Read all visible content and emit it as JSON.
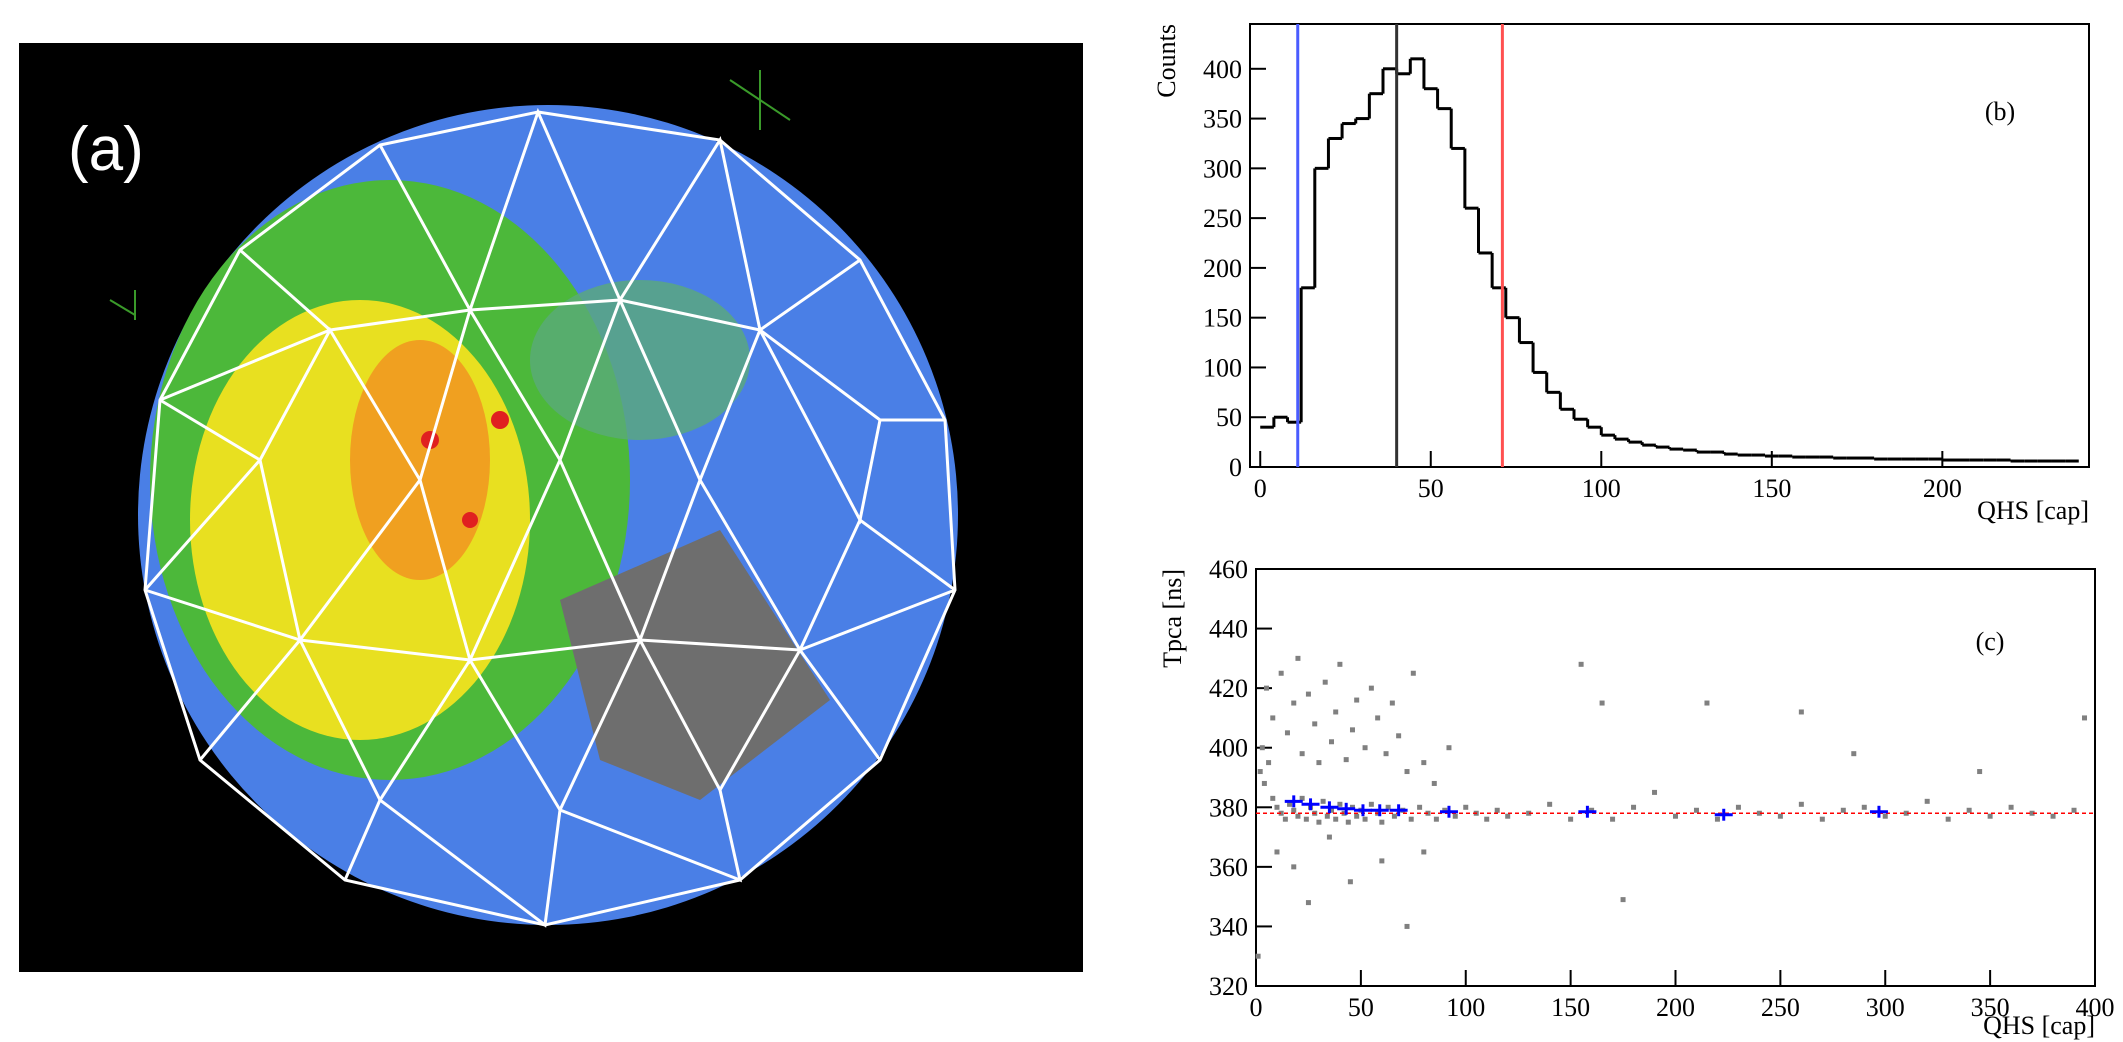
{
  "image": {
    "label": "(a)"
  },
  "chart_data": [
    {
      "type": "histogram",
      "annotation": "(b)",
      "xlabel": "QHS [cap]",
      "ylabel": "Counts",
      "color": "#000000",
      "bins": [
        0,
        4,
        8,
        12,
        16,
        20,
        24,
        28,
        32,
        36,
        40,
        44,
        48,
        52,
        56,
        60,
        64,
        68,
        72,
        76,
        80,
        84,
        88,
        92,
        96,
        100,
        104,
        108,
        112,
        116,
        120,
        124,
        128,
        132,
        136,
        140,
        144,
        148,
        152,
        156,
        160,
        164,
        168,
        172,
        176,
        180,
        184,
        188,
        192,
        196,
        200,
        204,
        208,
        212,
        216,
        220,
        224,
        228,
        232,
        236,
        240
      ],
      "counts": [
        40,
        50,
        45,
        180,
        300,
        330,
        345,
        350,
        375,
        400,
        395,
        410,
        380,
        360,
        320,
        260,
        215,
        180,
        150,
        125,
        95,
        75,
        58,
        48,
        40,
        32,
        28,
        25,
        22,
        20,
        18,
        17,
        15,
        15,
        13,
        12,
        12,
        11,
        11,
        10,
        10,
        10,
        9,
        9,
        9,
        8,
        8,
        8,
        8,
        8,
        7,
        7,
        7,
        7,
        7,
        6,
        6,
        6,
        6,
        6
      ],
      "xlim": [
        -3,
        243
      ],
      "ylim": [
        0,
        445
      ],
      "xticks": [
        0,
        50,
        100,
        150,
        200
      ],
      "yticks": [
        0,
        50,
        100,
        150,
        200,
        250,
        300,
        350,
        400
      ],
      "vlines": [
        {
          "value": 11,
          "color": "#4a5cff"
        },
        {
          "value": 40,
          "color": "#333333"
        },
        {
          "value": 71,
          "color": "#ff5050"
        }
      ]
    },
    {
      "type": "scatter",
      "annotation": "(c)",
      "xlabel": "QHS [cap]",
      "ylabel": "Tpca [ns]",
      "color": "#808080",
      "x": [
        2,
        4,
        6,
        3,
        8,
        10,
        12,
        14,
        16,
        18,
        20,
        22,
        24,
        26,
        28,
        30,
        32,
        34,
        36,
        38,
        40,
        42,
        44,
        46,
        48,
        50,
        52,
        55,
        58,
        60,
        63,
        66,
        70,
        74,
        78,
        82,
        86,
        90,
        95,
        100,
        105,
        110,
        115,
        120,
        5,
        8,
        12,
        15,
        18,
        20,
        22,
        25,
        28,
        30,
        33,
        36,
        38,
        40,
        43,
        46,
        48,
        52,
        55,
        58,
        62,
        65,
        68,
        72,
        75,
        80,
        85,
        92,
        10,
        18,
        25,
        35,
        45,
        60,
        72,
        80,
        175,
        1,
        130,
        140,
        150,
        160,
        165,
        170,
        180,
        190,
        200,
        210,
        215,
        220,
        230,
        240,
        250,
        260,
        270,
        280,
        290,
        300,
        310,
        320,
        330,
        340,
        350,
        360,
        370,
        380,
        390,
        395,
        345,
        155,
        260,
        285
      ],
      "y": [
        392,
        388,
        395,
        400,
        383,
        380,
        378,
        376,
        381,
        379,
        377,
        383,
        376,
        380,
        378,
        375,
        382,
        377,
        379,
        376,
        381,
        378,
        375,
        380,
        377,
        379,
        376,
        381,
        378,
        375,
        380,
        377,
        379,
        376,
        380,
        378,
        376,
        379,
        377,
        380,
        378,
        376,
        379,
        377,
        420,
        410,
        425,
        405,
        415,
        430,
        398,
        418,
        408,
        395,
        422,
        402,
        412,
        428,
        396,
        406,
        416,
        400,
        420,
        410,
        398,
        415,
        404,
        392,
        425,
        395,
        388,
        400,
        365,
        360,
        348,
        370,
        355,
        362,
        340,
        365,
        349,
        330,
        378,
        381,
        376,
        379,
        415,
        376,
        380,
        385,
        377,
        379,
        415,
        376,
        380,
        378,
        377,
        381,
        376,
        379,
        380,
        377,
        378,
        382,
        376,
        379,
        377,
        380,
        378,
        377,
        379,
        410,
        392,
        428,
        412,
        398
      ],
      "profile": {
        "color": "#0000ff",
        "x": [
          18,
          26,
          35,
          43,
          51,
          59,
          68,
          92,
          158,
          223,
          297
        ],
        "y": [
          382,
          381,
          380,
          379.5,
          379,
          379,
          379,
          378.5,
          378.5,
          377.5,
          378.5
        ],
        "yerr": [
          2,
          2,
          2,
          2,
          2,
          2,
          2,
          2,
          2,
          2,
          2
        ]
      },
      "fit": {
        "value": 378,
        "color": "#ff0000"
      },
      "xlim": [
        0,
        400
      ],
      "ylim": [
        320,
        460
      ],
      "xticks": [
        0,
        50,
        100,
        150,
        200,
        250,
        300,
        350,
        400
      ],
      "yticks": [
        320,
        340,
        360,
        380,
        400,
        420,
        440,
        460
      ]
    }
  ]
}
